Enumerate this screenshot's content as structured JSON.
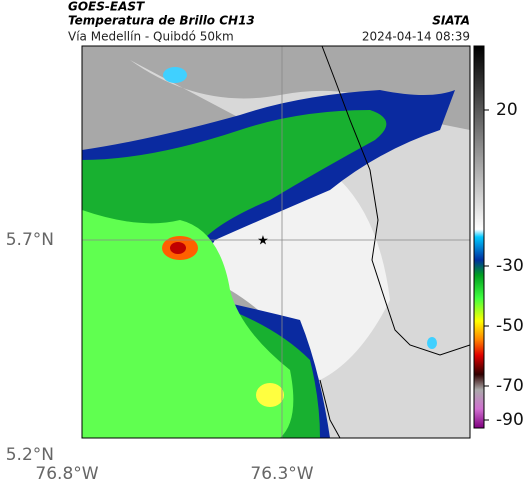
{
  "header": {
    "source": "GOES-EAST",
    "product": "Temperatura de Brillo CH13",
    "brand": "SIATA",
    "route": "Vía Medellín - Quibdó 50km",
    "datetime": "2024-04-14 08:39"
  },
  "axes": {
    "lat_labels": [
      "5.7°N",
      "5.2°N"
    ],
    "lon_labels": [
      "76.8°W",
      "76.3°W"
    ]
  },
  "colorbar": {
    "ticks": [
      20,
      -30,
      -50,
      -70,
      -90
    ]
  }
}
